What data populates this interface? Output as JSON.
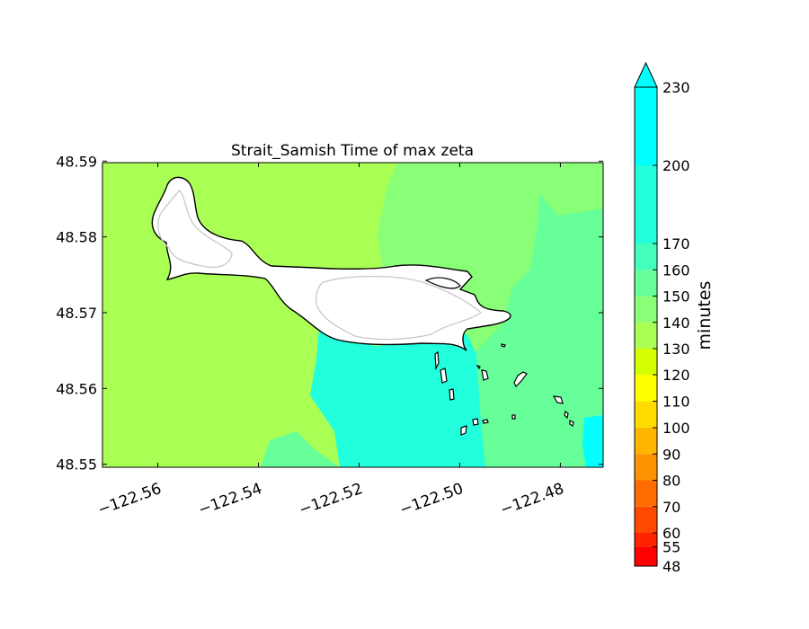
{
  "chart_data": {
    "type": "heatmap",
    "title": "Strait_Samish Time of max zeta",
    "x_ticks": [
      "−122.56",
      "−122.54",
      "−122.52",
      "−122.50",
      "−122.48"
    ],
    "y_ticks": [
      "48.59",
      "48.58",
      "48.57",
      "48.56",
      "48.55"
    ],
    "xlim": [
      -122.571,
      -122.4715
    ],
    "ylim": [
      48.5496,
      48.5898
    ],
    "colorbar": {
      "label": "minutes",
      "levels": [
        48,
        55,
        60,
        70,
        80,
        90,
        100,
        110,
        120,
        130,
        140,
        150,
        160,
        170,
        200,
        230
      ],
      "level_labels": [
        "48",
        "55",
        "60",
        "70",
        "80",
        "90",
        "100",
        "110",
        "120",
        "130",
        "140",
        "150",
        "160",
        "170",
        "200",
        "230"
      ],
      "colors": [
        "#ff0000",
        "#ff2400",
        "#ff4900",
        "#ff6d00",
        "#ff9200",
        "#ffb600",
        "#ffdb00",
        "#ffff00",
        "#d5ff00",
        "#aaff55",
        "#88ff77",
        "#66ff99",
        "#44ffbb",
        "#22ffdd",
        "#00ffff"
      ],
      "extend": "max"
    },
    "regions": [
      {
        "name": "west",
        "minutes": 135,
        "color": "#aaff55"
      },
      {
        "name": "north-east",
        "minutes": 145,
        "color": "#88ff77"
      },
      {
        "name": "east",
        "minutes": 155,
        "color": "#66ff99"
      },
      {
        "name": "south-central channel",
        "minutes": 175,
        "color": "#22ffdd"
      },
      {
        "name": "south-east corner",
        "minutes": 210,
        "color": "#00ffff"
      }
    ],
    "grid": false,
    "legend": "colorbar-right"
  }
}
